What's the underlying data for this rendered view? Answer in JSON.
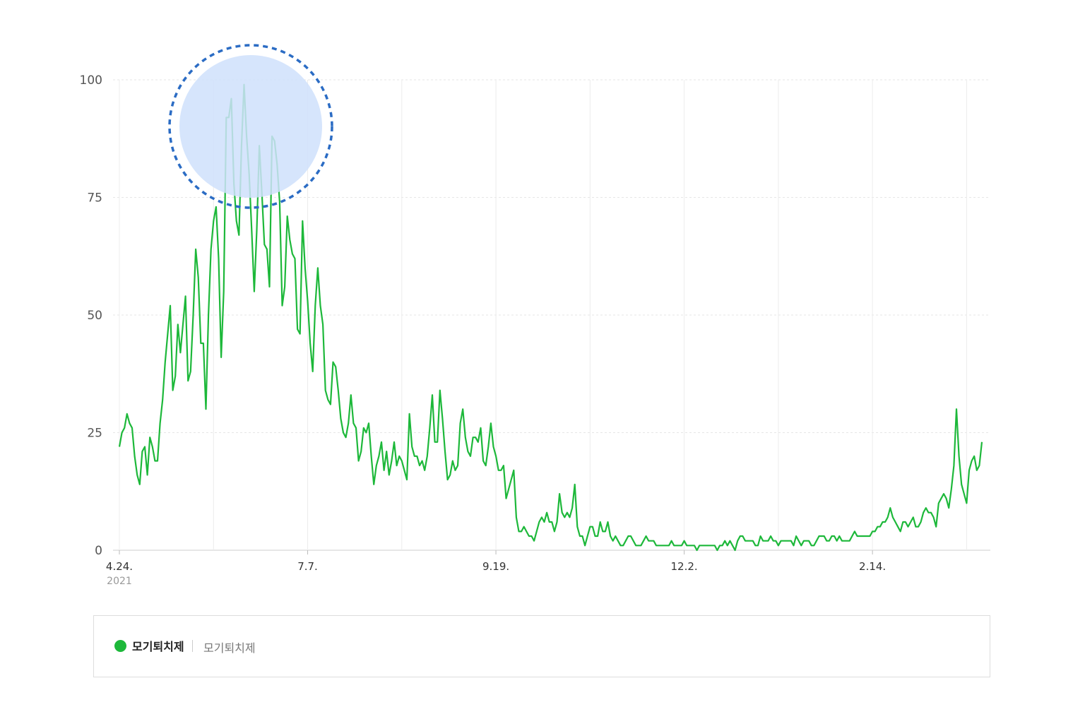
{
  "chart_data": {
    "type": "line",
    "title": "",
    "xlabel": "",
    "ylabel": "",
    "ylim": [
      0,
      100
    ],
    "y_ticks": [
      "100",
      "75",
      "50",
      "25",
      "0"
    ],
    "x_ticks": [
      {
        "label": "4.24.",
        "sub": "2021",
        "index": 0
      },
      {
        "label": "7.7.",
        "sub": "",
        "index": 74
      },
      {
        "label": "9.19.",
        "sub": "",
        "index": 148
      },
      {
        "label": "12.2.",
        "sub": "",
        "index": 222
      },
      {
        "label": "2.14.",
        "sub": "",
        "index": 296
      }
    ],
    "grid": true,
    "series": [
      {
        "name": "모기퇴치제",
        "color": "#1db83a",
        "values": [
          22,
          25,
          26,
          29,
          27,
          26,
          20,
          16,
          14,
          21,
          22,
          16,
          24,
          22,
          19,
          19,
          27,
          32,
          40,
          46,
          52,
          34,
          37,
          48,
          42,
          48,
          54,
          36,
          38,
          50,
          64,
          58,
          44,
          44,
          30,
          50,
          64,
          70,
          73,
          62,
          41,
          55,
          92,
          92,
          96,
          78,
          70,
          67,
          86,
          99,
          88,
          80,
          68,
          55,
          68,
          86,
          76,
          65,
          64,
          56,
          88,
          87,
          82,
          74,
          52,
          56,
          71,
          66,
          63,
          62,
          47,
          46,
          70,
          60,
          53,
          44,
          38,
          52,
          60,
          52,
          48,
          34,
          32,
          31,
          40,
          39,
          34,
          28,
          25,
          24,
          27,
          33,
          27,
          26,
          19,
          21,
          26,
          25,
          27,
          20,
          14,
          18,
          20,
          23,
          17,
          21,
          16,
          19,
          23,
          18,
          20,
          19,
          17,
          15,
          29,
          22,
          20,
          20,
          18,
          19,
          17,
          20,
          26,
          33,
          23,
          23,
          34,
          28,
          21,
          15,
          16,
          19,
          17,
          18,
          27,
          30,
          24,
          21,
          20,
          24,
          24,
          23,
          26,
          19,
          18,
          22,
          27,
          22,
          20,
          17,
          17,
          18,
          11,
          13,
          15,
          17,
          7,
          4,
          4,
          5,
          4,
          3,
          3,
          2,
          4,
          6,
          7,
          6,
          8,
          6,
          6,
          4,
          6,
          12,
          8,
          7,
          8,
          7,
          9,
          14,
          5,
          3,
          3,
          1,
          3,
          5,
          5,
          3,
          3,
          6,
          4,
          4,
          6,
          3,
          2,
          3,
          2,
          1,
          1,
          2,
          3,
          3,
          2,
          1,
          1,
          1,
          2,
          3,
          2,
          2,
          2,
          1,
          1,
          1,
          1,
          1,
          1,
          2,
          1,
          1,
          1,
          1,
          2,
          1,
          1,
          1,
          1,
          0,
          1,
          1,
          1,
          1,
          1,
          1,
          1,
          0,
          1,
          1,
          2,
          1,
          2,
          1,
          0,
          2,
          3,
          3,
          2,
          2,
          2,
          2,
          1,
          1,
          3,
          2,
          2,
          2,
          3,
          2,
          2,
          1,
          2,
          2,
          2,
          2,
          2,
          1,
          3,
          2,
          1,
          2,
          2,
          2,
          1,
          1,
          2,
          3,
          3,
          3,
          2,
          2,
          3,
          3,
          2,
          3,
          2,
          2,
          2,
          2,
          3,
          4,
          3,
          3,
          3,
          3,
          3,
          3,
          4,
          4,
          5,
          5,
          6,
          6,
          7,
          9,
          7,
          6,
          5,
          4,
          6,
          6,
          5,
          6,
          7,
          5,
          5,
          6,
          8,
          9,
          8,
          8,
          7,
          5,
          10,
          11,
          12,
          11,
          9,
          13,
          18,
          30,
          20,
          14,
          12,
          10,
          17,
          19,
          20,
          17,
          18,
          23
        ]
      }
    ],
    "legend": "bottom"
  },
  "legend": {
    "primary": "모기퇴치제",
    "secondary": "모기퇴치제"
  },
  "highlight": {
    "fill": "#cfe0fb",
    "stroke": "#2b6cc4"
  }
}
